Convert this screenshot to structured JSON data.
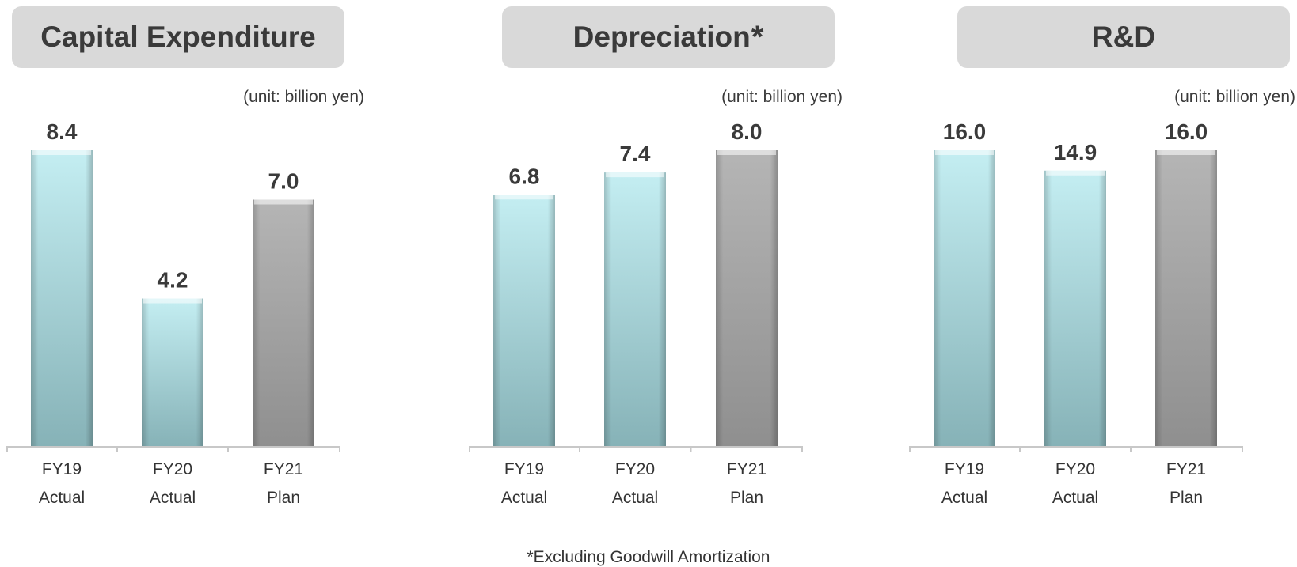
{
  "colors": {
    "actual_top": "#c4eef2",
    "actual_bottom": "#86b2b7",
    "plan_top": "#b5b5b5",
    "plan_bottom": "#8f8f8f",
    "axis": "#c8c8c8",
    "text": "#3a3a3a",
    "title_bg": "#d9d9d9"
  },
  "footnote": "*Excluding Goodwill Amortization",
  "chart_data": [
    {
      "type": "bar",
      "title": "Capital Expenditure",
      "title_suffix": "",
      "unit_label": "(unit: billion yen)",
      "categories": [
        [
          "FY19",
          "Actual"
        ],
        [
          "FY20",
          "Actual"
        ],
        [
          "FY21",
          "Plan"
        ]
      ],
      "values": [
        8.4,
        4.2,
        7.0
      ],
      "value_labels": [
        "8.4",
        "4.2",
        "7.0"
      ],
      "bar_kinds": [
        "actual",
        "actual",
        "plan"
      ],
      "ylim": [
        0,
        8.4
      ]
    },
    {
      "type": "bar",
      "title": "Depreciation",
      "title_suffix": "*",
      "unit_label": "(unit: billion yen)",
      "categories": [
        [
          "FY19",
          "Actual"
        ],
        [
          "FY20",
          "Actual"
        ],
        [
          "FY21",
          "Plan"
        ]
      ],
      "values": [
        6.8,
        7.4,
        8.0
      ],
      "value_labels": [
        "6.8",
        "7.4",
        "8.0"
      ],
      "bar_kinds": [
        "actual",
        "actual",
        "plan"
      ],
      "ylim": [
        0,
        8.0
      ]
    },
    {
      "type": "bar",
      "title": "R&D",
      "title_suffix": "",
      "unit_label": "(unit: billion yen)",
      "categories": [
        [
          "FY19",
          "Actual"
        ],
        [
          "FY20",
          "Actual"
        ],
        [
          "FY21",
          "Plan"
        ]
      ],
      "values": [
        16.0,
        14.9,
        16.0
      ],
      "value_labels": [
        "16.0",
        "14.9",
        "16.0"
      ],
      "bar_kinds": [
        "actual",
        "actual",
        "plan"
      ],
      "ylim": [
        0,
        16.0
      ]
    }
  ]
}
